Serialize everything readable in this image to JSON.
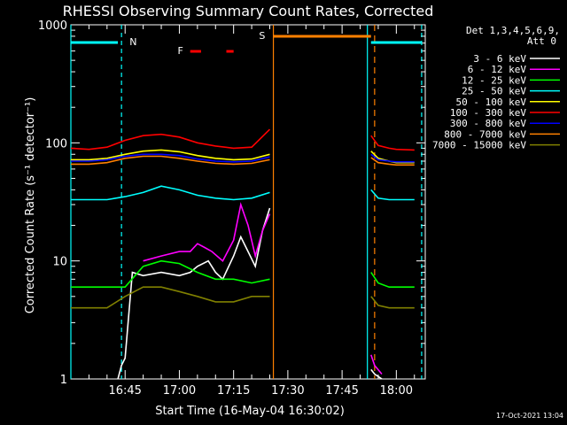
{
  "chart_data": {
    "type": "line",
    "title": "RHESSI Observing Summary Count Rates, Corrected",
    "xlabel": "Start Time (16-May-04 16:30:02)",
    "ylabel": "Corrected Count Rate (s⁻¹ detector⁻¹)",
    "y_scale": "log",
    "ylim": [
      1,
      1000
    ],
    "xlim": [
      "16:30",
      "18:08"
    ],
    "y_ticks": [
      "1",
      "10",
      "100",
      "1000"
    ],
    "x_ticks": [
      "16:45",
      "17:00",
      "17:15",
      "17:30",
      "17:45",
      "18:00"
    ],
    "legend_header": [
      "Det 1,3,4,5,6,9,",
      "Att 0"
    ],
    "legend_position": "top-right",
    "footer_date": "17-Oct-2021 13:04",
    "markers": {
      "N_label": "N",
      "F_label": "F",
      "S_label": "S"
    },
    "data_gaps": [
      [
        "17:26",
        "17:52"
      ]
    ],
    "series": [
      {
        "name": "3 - 6 keV",
        "color": "#ffffff",
        "x": [
          "16:43",
          "16:44",
          "16:45",
          "16:47",
          "16:50",
          "16:55",
          "17:00",
          "17:03",
          "17:05",
          "17:08",
          "17:10",
          "17:12",
          "17:15",
          "17:17",
          "17:19",
          "17:21",
          "17:23",
          "17:25",
          "17:53",
          "17:54",
          "17:56"
        ],
        "y": [
          1,
          1.3,
          1.5,
          8,
          7.5,
          8,
          7.5,
          8,
          9,
          10,
          8,
          7,
          11,
          16,
          12,
          9,
          18,
          28,
          1.2,
          1.1,
          1
        ]
      },
      {
        "name": "6 - 12 keV",
        "color": "#ff00ff",
        "x": [
          "16:50",
          "16:55",
          "17:00",
          "17:03",
          "17:05",
          "17:07",
          "17:09",
          "17:12",
          "17:15",
          "17:17",
          "17:19",
          "17:21",
          "17:23",
          "17:25",
          "17:53",
          "17:54",
          "17:56"
        ],
        "y": [
          10,
          11,
          12,
          12,
          14,
          13,
          12,
          10,
          15,
          30,
          20,
          11,
          18,
          25,
          1.6,
          1.3,
          1.1
        ]
      },
      {
        "name": "12 - 25 keV",
        "color": "#00ff00",
        "x": [
          "16:30",
          "16:35",
          "16:40",
          "16:45",
          "16:50",
          "16:55",
          "17:00",
          "17:05",
          "17:10",
          "17:15",
          "17:20",
          "17:25",
          "17:53",
          "17:55",
          "17:58",
          "18:00",
          "18:05"
        ],
        "y": [
          6,
          6,
          6,
          6,
          9,
          10,
          9.5,
          8,
          7,
          7,
          6.5,
          7,
          8,
          6.5,
          6,
          6,
          6
        ]
      },
      {
        "name": "25 - 50 keV",
        "color": "#00ffff",
        "x": [
          "16:30",
          "16:35",
          "16:40",
          "16:45",
          "16:50",
          "16:55",
          "17:00",
          "17:05",
          "17:10",
          "17:15",
          "17:20",
          "17:25",
          "17:53",
          "17:55",
          "17:58",
          "18:00",
          "18:05"
        ],
        "y": [
          33,
          33,
          33,
          35,
          38,
          43,
          40,
          36,
          34,
          33,
          34,
          38,
          40,
          34,
          33,
          33,
          33
        ]
      },
      {
        "name": "50 - 100 keV",
        "color": "#ffff00",
        "x": [
          "16:30",
          "16:35",
          "16:40",
          "16:45",
          "16:50",
          "16:55",
          "17:00",
          "17:05",
          "17:10",
          "17:15",
          "17:20",
          "17:25",
          "17:53",
          "17:55",
          "17:58",
          "18:00",
          "18:05"
        ],
        "y": [
          72,
          72,
          74,
          80,
          85,
          87,
          84,
          78,
          74,
          72,
          73,
          80,
          85,
          74,
          70,
          68,
          68
        ]
      },
      {
        "name": "100 - 300 keV",
        "color": "#ff0000",
        "x": [
          "16:30",
          "16:35",
          "16:40",
          "16:45",
          "16:50",
          "16:55",
          "17:00",
          "17:05",
          "17:10",
          "17:15",
          "17:20",
          "17:25",
          "17:53",
          "17:55",
          "17:58",
          "18:00",
          "18:05"
        ],
        "y": [
          90,
          88,
          92,
          105,
          115,
          118,
          112,
          100,
          94,
          90,
          92,
          130,
          115,
          95,
          90,
          88,
          87
        ]
      },
      {
        "name": "300 - 800 keV",
        "color": "#0000ff",
        "x": [
          "16:30",
          "16:35",
          "16:40",
          "16:45",
          "16:50",
          "16:55",
          "17:00",
          "17:05",
          "17:10",
          "17:15",
          "17:20",
          "17:25",
          "17:53",
          "17:55",
          "17:58",
          "18:00",
          "18:05"
        ],
        "y": [
          70,
          70,
          72,
          77,
          80,
          80,
          78,
          73,
          70,
          69,
          70,
          76,
          80,
          72,
          70,
          69,
          69
        ]
      },
      {
        "name": "800 - 7000 keV",
        "color": "#ff8000",
        "x": [
          "16:30",
          "16:35",
          "16:40",
          "16:45",
          "16:50",
          "16:55",
          "17:00",
          "17:05",
          "17:10",
          "17:15",
          "17:20",
          "17:25",
          "17:53",
          "17:55",
          "17:58",
          "18:00",
          "18:05"
        ],
        "y": [
          66,
          66,
          68,
          74,
          77,
          77,
          74,
          70,
          67,
          66,
          67,
          72,
          75,
          68,
          66,
          65,
          65
        ]
      },
      {
        "name": "7000 - 15000 keV",
        "color": "#808000",
        "x": [
          "16:30",
          "16:35",
          "16:40",
          "16:45",
          "16:50",
          "16:55",
          "17:00",
          "17:05",
          "17:10",
          "17:15",
          "17:20",
          "17:25",
          "17:53",
          "17:55",
          "17:58",
          "18:00",
          "18:05"
        ],
        "y": [
          4,
          4,
          4,
          5,
          6,
          6,
          5.5,
          5,
          4.5,
          4.5,
          5,
          5,
          5,
          4.2,
          4,
          4,
          4
        ]
      }
    ]
  }
}
